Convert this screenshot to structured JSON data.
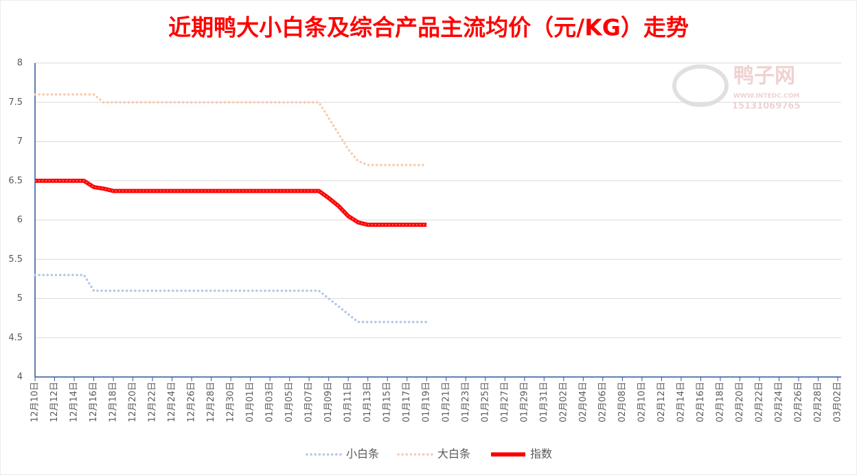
{
  "chart_data": {
    "type": "line",
    "title": "近期鸭大小白条及综合产品主流均价（元/KG）走势",
    "watermark": {
      "brand": "鸭子网",
      "site": "WWW.INTEDC.COM",
      "phone": "15131069765"
    },
    "categories": [
      "12月10日",
      null,
      "12月12日",
      null,
      "12月14日",
      null,
      "12月16日",
      null,
      "12月18日",
      null,
      "12月20日",
      null,
      "12月22日",
      null,
      "12月24日",
      null,
      "12月26日",
      null,
      "12月28日",
      null,
      "12月30日",
      null,
      "01月01日",
      null,
      "01月03日",
      null,
      "01月05日",
      null,
      "01月07日",
      null,
      "01月09日",
      null,
      "01月11日",
      null,
      "01月13日",
      null,
      "01月15日",
      null,
      "01月17日",
      null,
      "01月19日",
      null,
      "01月21日",
      null,
      "01月23日",
      null,
      "01月25日",
      null,
      "01月27日",
      null,
      "01月29日",
      null,
      "01月31日",
      null,
      "02月02日",
      null,
      "02月04日",
      null,
      "02月06日",
      null,
      "02月08日",
      null,
      "02月10日",
      null,
      "02月12日",
      null,
      "02月14日",
      null,
      "02月16日",
      null,
      "02月18日",
      null,
      "02月20日",
      null,
      "02月22日",
      null,
      "02月24日",
      null,
      "02月26日",
      null,
      "02月28日",
      null,
      "03月02日"
    ],
    "series": [
      {
        "name": "小白条",
        "color": "#b4c7e7",
        "style": "dotted",
        "values": [
          5.3,
          5.3,
          5.3,
          5.3,
          5.3,
          5.3,
          5.1,
          5.1,
          5.1,
          5.1,
          5.1,
          5.1,
          5.1,
          5.1,
          5.1,
          5.1,
          5.1,
          5.1,
          5.1,
          5.1,
          5.1,
          5.1,
          5.1,
          5.1,
          5.1,
          5.1,
          5.1,
          5.1,
          5.1,
          5.1,
          5.0,
          4.9,
          4.8,
          4.7,
          4.7,
          4.7,
          4.7,
          4.7,
          4.7,
          4.7,
          4.7,
          null,
          null,
          null,
          null,
          null,
          null,
          null,
          null,
          null,
          null,
          null,
          null,
          null,
          null,
          null,
          null,
          null,
          null,
          null,
          null,
          null,
          null,
          null,
          null,
          null,
          null,
          null,
          null,
          null,
          null,
          null,
          null,
          null,
          null,
          null,
          null,
          null,
          null,
          null,
          null,
          null,
          null
        ]
      },
      {
        "name": "大白条",
        "color": "#f8cbad",
        "style": "dotted",
        "values": [
          7.6,
          7.6,
          7.6,
          7.6,
          7.6,
          7.6,
          7.6,
          7.5,
          7.5,
          7.5,
          7.5,
          7.5,
          7.5,
          7.5,
          7.5,
          7.5,
          7.5,
          7.5,
          7.5,
          7.5,
          7.5,
          7.5,
          7.5,
          7.5,
          7.5,
          7.5,
          7.5,
          7.5,
          7.5,
          7.5,
          7.3,
          7.1,
          6.9,
          6.75,
          6.7,
          6.7,
          6.7,
          6.7,
          6.7,
          6.7,
          6.7,
          null,
          null,
          null,
          null,
          null,
          null,
          null,
          null,
          null,
          null,
          null,
          null,
          null,
          null,
          null,
          null,
          null,
          null,
          null,
          null,
          null,
          null,
          null,
          null,
          null,
          null,
          null,
          null,
          null,
          null,
          null,
          null,
          null,
          null,
          null,
          null,
          null,
          null,
          null,
          null,
          null,
          null
        ]
      },
      {
        "name": "指数",
        "color": "#ff0000",
        "style": "solid",
        "values": [
          6.5,
          6.5,
          6.5,
          6.5,
          6.5,
          6.5,
          6.42,
          6.4,
          6.37,
          6.37,
          6.37,
          6.37,
          6.37,
          6.37,
          6.37,
          6.37,
          6.37,
          6.37,
          6.37,
          6.37,
          6.37,
          6.37,
          6.37,
          6.37,
          6.37,
          6.37,
          6.37,
          6.37,
          6.37,
          6.37,
          6.28,
          6.18,
          6.05,
          5.97,
          5.94,
          5.94,
          5.94,
          5.94,
          5.94,
          5.94,
          5.94,
          null,
          null,
          null,
          null,
          null,
          null,
          null,
          null,
          null,
          null,
          null,
          null,
          null,
          null,
          null,
          null,
          null,
          null,
          null,
          null,
          null,
          null,
          null,
          null,
          null,
          null,
          null,
          null,
          null,
          null,
          null,
          null,
          null,
          null,
          null,
          null,
          null,
          null,
          null,
          null,
          null,
          null
        ]
      }
    ],
    "ylim": [
      4,
      8
    ],
    "yticks": [
      4,
      4.5,
      5,
      5.5,
      6,
      6.5,
      7,
      7.5,
      8
    ],
    "grid": true,
    "legend": "bottom"
  }
}
